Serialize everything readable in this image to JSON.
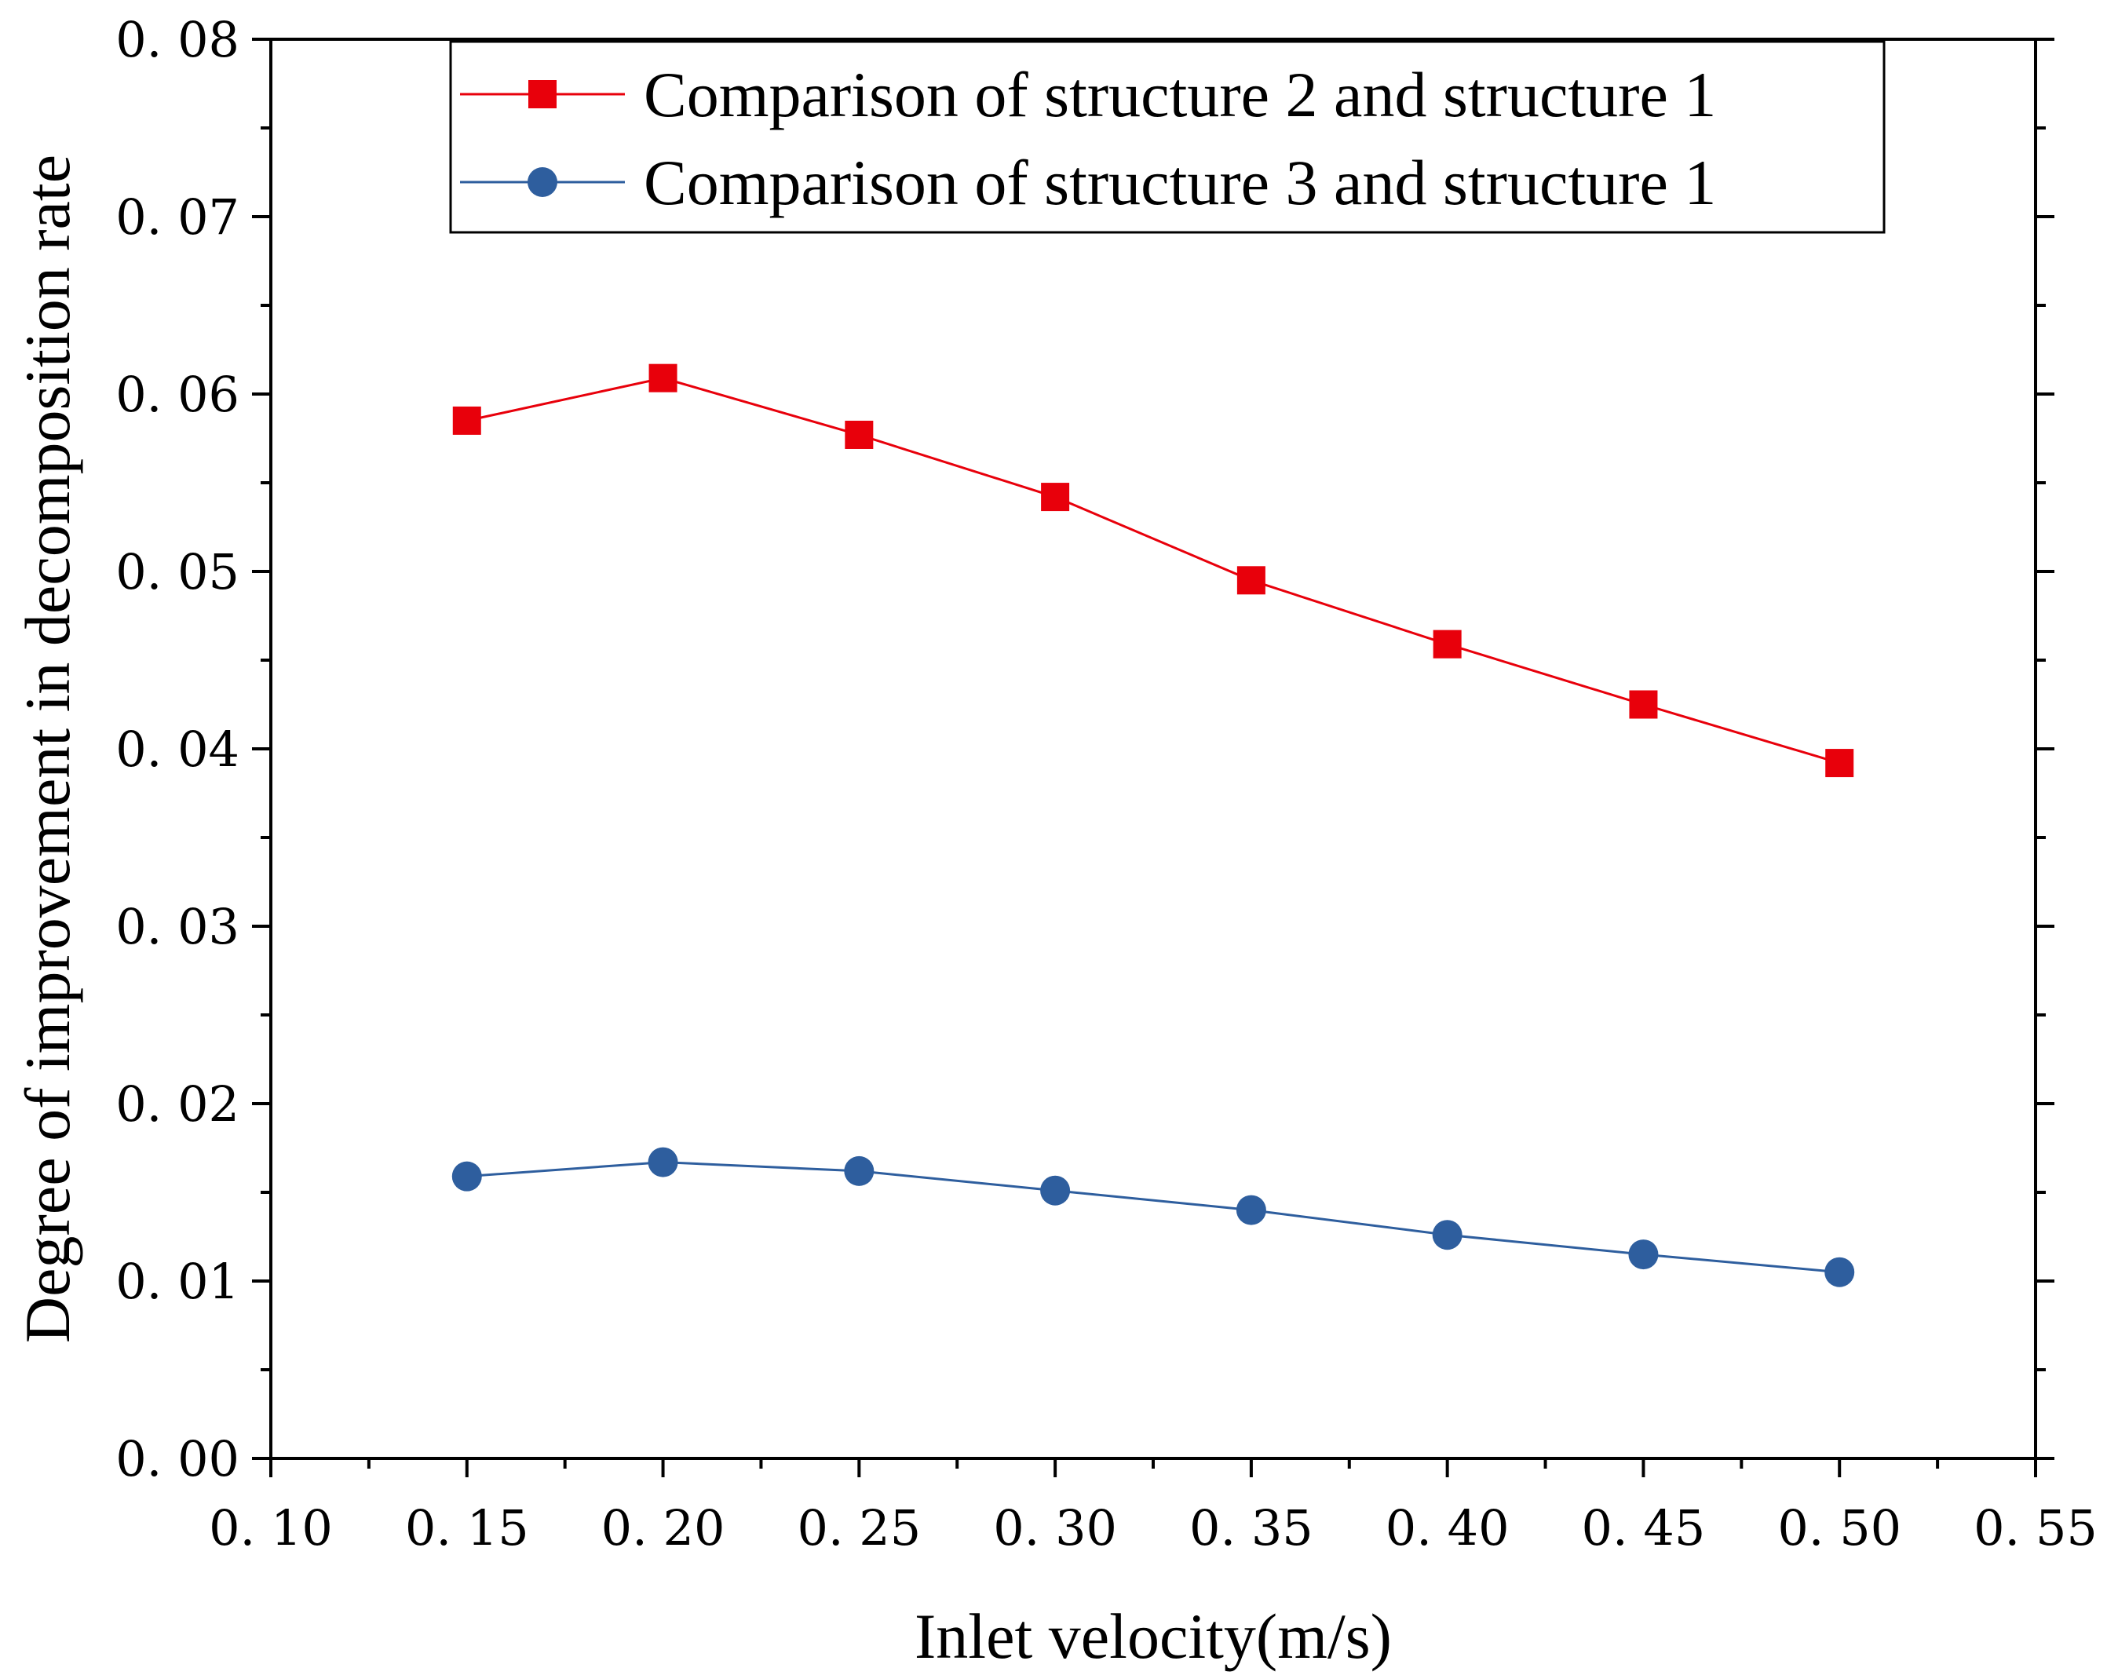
{
  "chart_data": {
    "type": "line",
    "title": "",
    "xlabel": "Inlet velocity(m/s)",
    "ylabel": "Degree of improvement in decomposition rate",
    "xlim": [
      0.1,
      0.55
    ],
    "ylim": [
      0.0,
      0.08
    ],
    "xticks": [
      "0. 10",
      "0. 15",
      "0. 20",
      "0. 25",
      "0. 30",
      "0. 35",
      "0. 40",
      "0. 45",
      "0. 50",
      "0. 55"
    ],
    "yticks": [
      "0. 00",
      "0. 01",
      "0. 02",
      "0. 03",
      "0. 04",
      "0. 05",
      "0. 06",
      "0. 07",
      "0. 08"
    ],
    "x": [
      0.15,
      0.2,
      0.25,
      0.3,
      0.35,
      0.4,
      0.45,
      0.5
    ],
    "legend_position": "top-right",
    "series": [
      {
        "name": "Comparison of structure 2 and structure 1",
        "color": "#e8000b",
        "marker": "square",
        "values": [
          0.0585,
          0.0609,
          0.0577,
          0.0542,
          0.0495,
          0.0459,
          0.0425,
          0.0392
        ]
      },
      {
        "name": "Comparison of structure 3 and structure 1",
        "color": "#2e5e9e",
        "marker": "circle",
        "values": [
          0.0159,
          0.0167,
          0.0162,
          0.0151,
          0.014,
          0.0126,
          0.0115,
          0.0105
        ]
      }
    ]
  }
}
